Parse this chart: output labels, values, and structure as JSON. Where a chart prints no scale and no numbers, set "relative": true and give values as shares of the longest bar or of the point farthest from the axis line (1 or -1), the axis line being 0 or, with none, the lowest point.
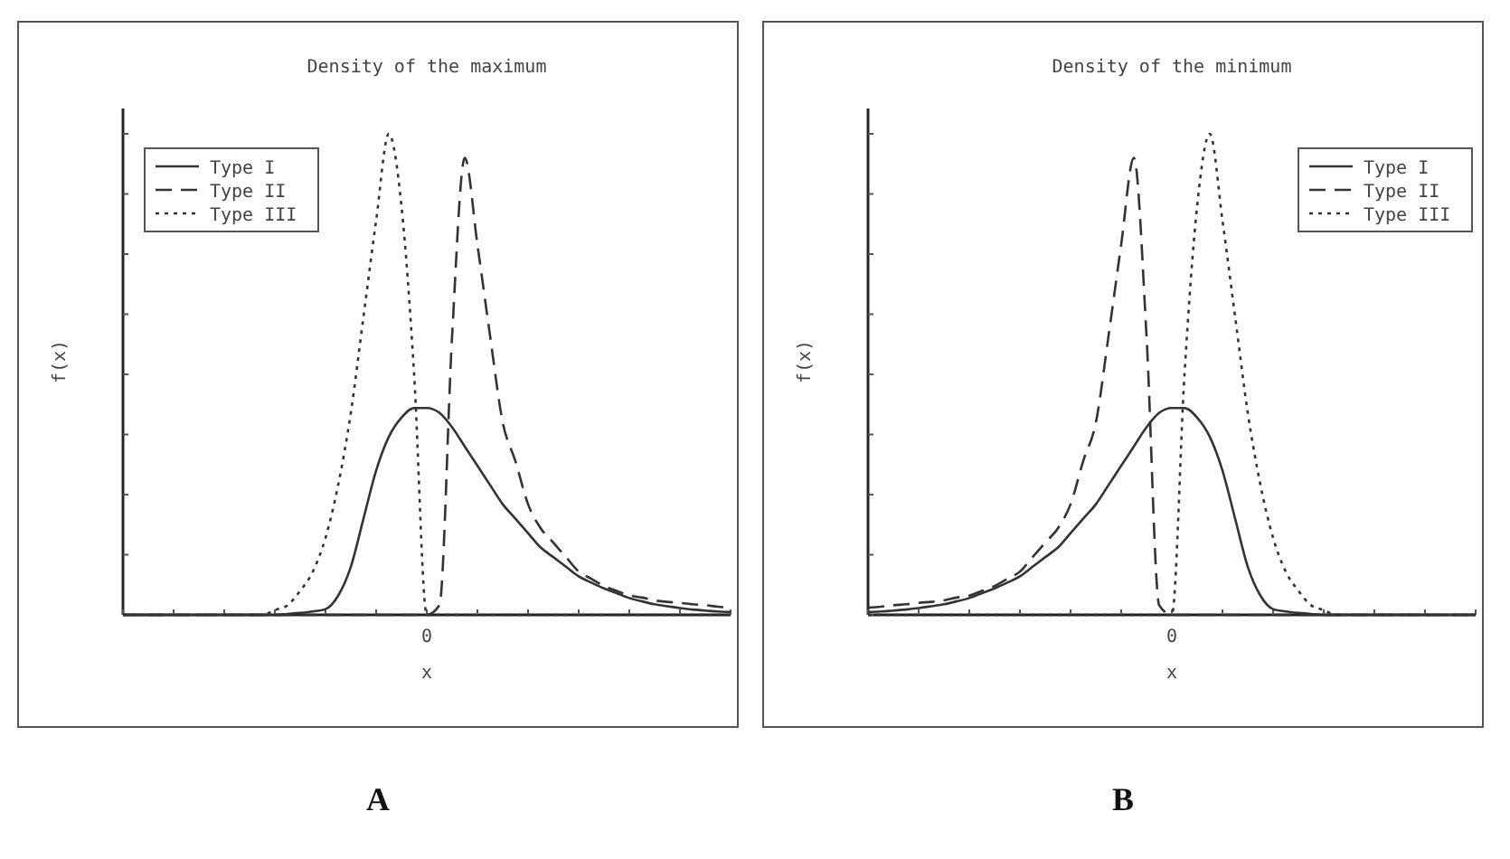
{
  "chart_data": [
    {
      "type": "line",
      "title": "Density of the maximum",
      "xlabel": "x",
      "ylabel": "f(x)",
      "relative": true,
      "legend": "top left",
      "annotations": [
        "0",
        "A"
      ],
      "categories": [
        null,
        null,
        null,
        null,
        null,
        null,
        null,
        null,
        null,
        null,
        null,
        null,
        null,
        null,
        null,
        null,
        null,
        null,
        null,
        null,
        null,
        null,
        null,
        null,
        null,
        null,
        null,
        null,
        null,
        null,
        null,
        null,
        null,
        null,
        null,
        null,
        null,
        null,
        null,
        null,
        null,
        null,
        null,
        null,
        null,
        null,
        null,
        null,
        null
      ],
      "series": [
        {
          "name": "Type I",
          "color": "#333333",
          "line_style": "solid",
          "values": [
            0,
            0,
            0,
            0,
            0,
            0,
            0,
            0,
            0,
            0,
            0,
            0,
            0,
            0.002,
            0.004,
            0.007,
            0.012,
            0.04,
            0.1,
            0.2,
            0.3,
            0.37,
            0.41,
            0.43,
            0.43,
            0.42,
            0.39,
            0.35,
            0.31,
            0.27,
            0.23,
            0.2,
            0.17,
            0.14,
            0.12,
            0.1,
            0.08,
            0.067,
            0.055,
            0.045,
            0.035,
            0.028,
            0.022,
            0.018,
            0.014,
            0.011,
            0.009,
            0.007,
            0.006
          ]
        },
        {
          "name": "Type II",
          "color": "#333333",
          "line_style": "dashed",
          "values": [
            0,
            0,
            0,
            0,
            0,
            0,
            0,
            0,
            0,
            0,
            0,
            0,
            0,
            0,
            0,
            0,
            0,
            0,
            0,
            0,
            0,
            0,
            0,
            0,
            0,
            0.02,
            0.58,
            0.95,
            0.77,
            0.58,
            0.4,
            0.32,
            0.23,
            0.18,
            0.15,
            0.12,
            0.09,
            0.075,
            0.06,
            0.05,
            0.04,
            0.036,
            0.03,
            0.027,
            0.025,
            0.022,
            0.02,
            0.017,
            0.015
          ]
        },
        {
          "name": "Type III",
          "color": "#333333",
          "line_style": "dotted",
          "values": [
            0,
            0,
            0,
            0,
            0,
            0,
            0,
            0,
            0,
            0,
            0,
            0,
            0.01,
            0.02,
            0.05,
            0.09,
            0.16,
            0.27,
            0.42,
            0.62,
            0.82,
            1,
            0.85,
            0.5,
            0,
            0,
            0,
            0,
            0,
            0,
            0,
            0,
            0,
            0,
            0,
            0,
            0,
            0,
            0,
            0,
            0,
            0,
            0,
            0,
            0,
            0,
            0,
            0,
            0
          ]
        }
      ]
    },
    {
      "type": "line",
      "title": "Density of the minimum",
      "xlabel": "x",
      "ylabel": "f(x)",
      "relative": true,
      "legend": "top right",
      "annotations": [
        "0",
        "B"
      ],
      "categories": [
        null,
        null,
        null,
        null,
        null,
        null,
        null,
        null,
        null,
        null,
        null,
        null,
        null,
        null,
        null,
        null,
        null,
        null,
        null,
        null,
        null,
        null,
        null,
        null,
        null,
        null,
        null,
        null,
        null,
        null,
        null,
        null,
        null,
        null,
        null,
        null,
        null,
        null,
        null,
        null,
        null,
        null,
        null,
        null,
        null,
        null,
        null,
        null,
        null
      ],
      "series": [
        {
          "name": "Type I",
          "color": "#333333",
          "line_style": "solid",
          "values": [
            0.006,
            0.007,
            0.009,
            0.011,
            0.014,
            0.018,
            0.022,
            0.028,
            0.035,
            0.045,
            0.055,
            0.067,
            0.08,
            0.1,
            0.12,
            0.14,
            0.17,
            0.2,
            0.23,
            0.27,
            0.31,
            0.35,
            0.39,
            0.42,
            0.43,
            0.43,
            0.41,
            0.37,
            0.3,
            0.2,
            0.1,
            0.04,
            0.012,
            0.007,
            0.004,
            0.002,
            0,
            0,
            0,
            0,
            0,
            0,
            0,
            0,
            0,
            0,
            0,
            0,
            0
          ]
        },
        {
          "name": "Type II",
          "color": "#333333",
          "line_style": "dashed",
          "values": [
            0.015,
            0.017,
            0.02,
            0.022,
            0.025,
            0.027,
            0.03,
            0.036,
            0.04,
            0.05,
            0.06,
            0.075,
            0.09,
            0.12,
            0.15,
            0.18,
            0.23,
            0.32,
            0.4,
            0.58,
            0.77,
            0.95,
            0.58,
            0.02,
            0,
            0,
            0,
            0,
            0,
            0,
            0,
            0,
            0,
            0,
            0,
            0,
            0,
            0,
            0,
            0,
            0,
            0,
            0,
            0,
            0,
            0,
            0,
            0,
            0
          ]
        },
        {
          "name": "Type III",
          "color": "#333333",
          "line_style": "dotted",
          "values": [
            0,
            0,
            0,
            0,
            0,
            0,
            0,
            0,
            0,
            0,
            0,
            0,
            0,
            0,
            0,
            0,
            0,
            0,
            0,
            0,
            0,
            0,
            0,
            0,
            0,
            0.5,
            0.85,
            1,
            0.82,
            0.62,
            0.42,
            0.27,
            0.16,
            0.09,
            0.05,
            0.02,
            0.01,
            0,
            0,
            0,
            0,
            0,
            0,
            0,
            0,
            0,
            0,
            0,
            0
          ]
        }
      ]
    }
  ]
}
